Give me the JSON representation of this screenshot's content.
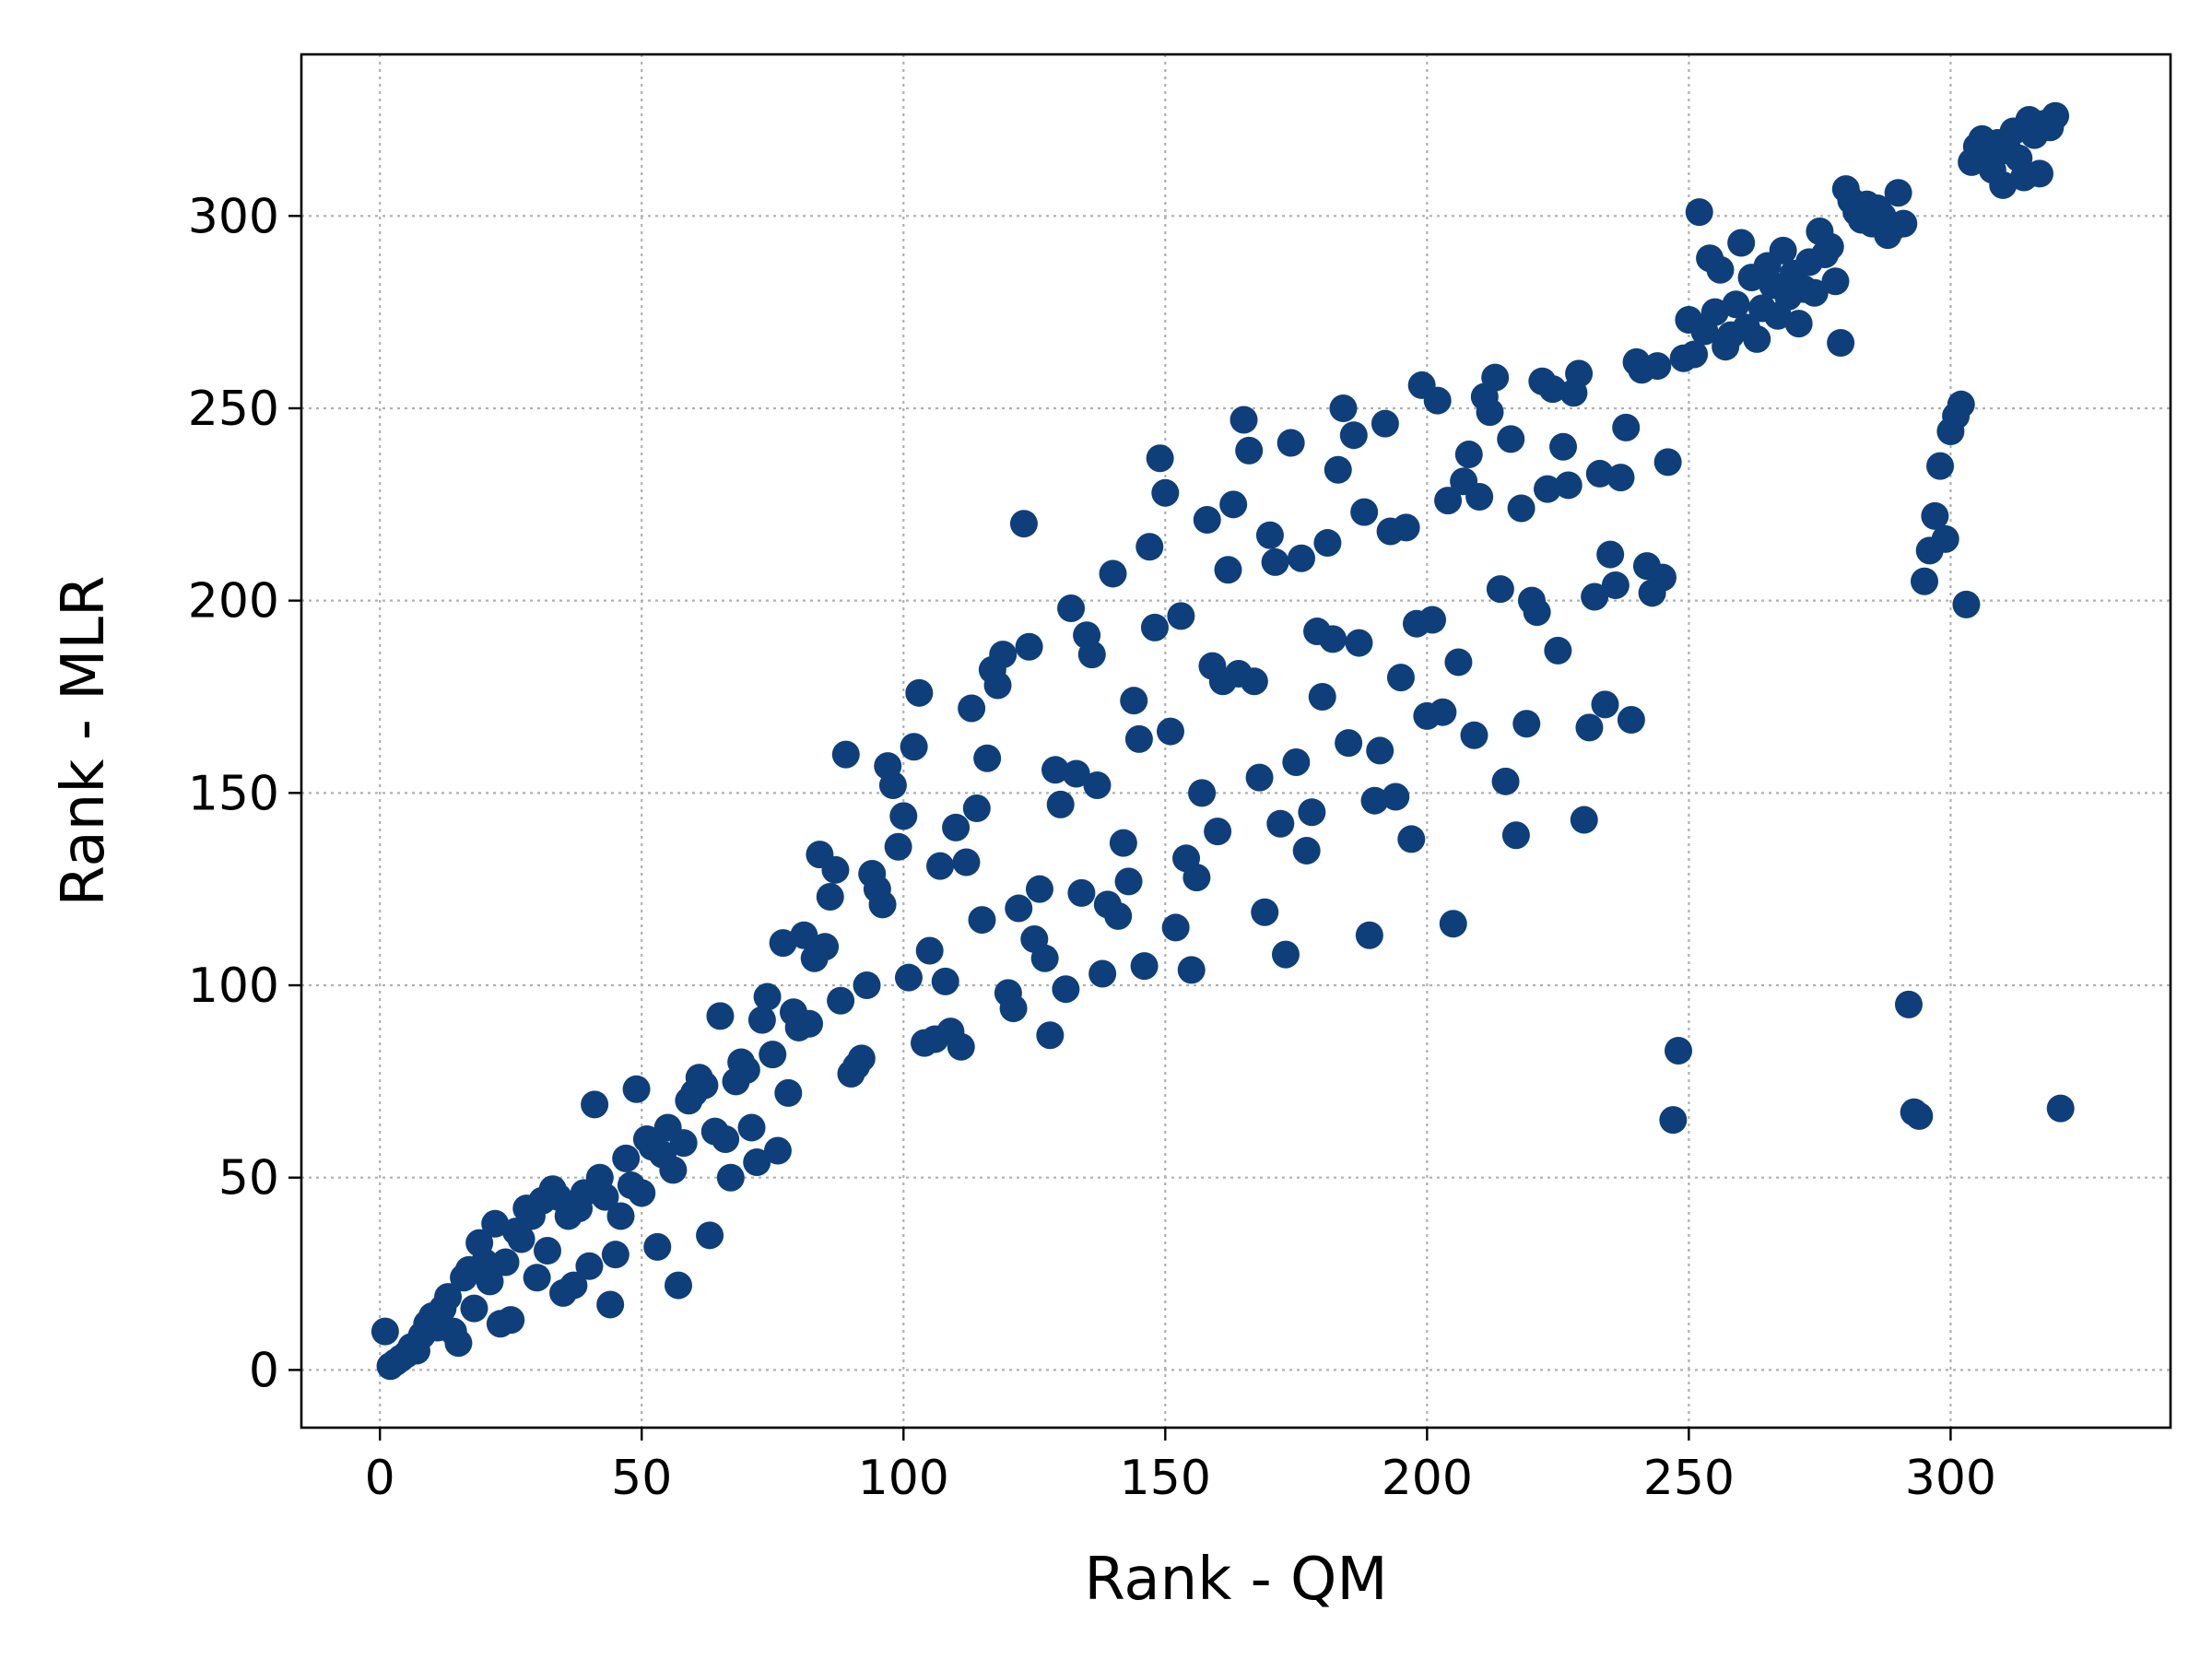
{
  "chart_data": {
    "type": "scatter",
    "title": "",
    "xlabel": "Rank - QM",
    "ylabel": "Rank - MLR",
    "xlim": [
      -15,
      342
    ],
    "ylim": [
      -15,
      342
    ],
    "xticks": [
      0,
      50,
      100,
      150,
      200,
      250,
      300
    ],
    "yticks": [
      0,
      50,
      100,
      150,
      200,
      250,
      300
    ],
    "grid": true,
    "marker_color": "#0f3f7a",
    "series": [
      {
        "points": [
          [
            1,
            10
          ],
          [
            2,
            1
          ],
          [
            3,
            2
          ],
          [
            4,
            3
          ],
          [
            5,
            4
          ],
          [
            6,
            6
          ],
          [
            7,
            5
          ],
          [
            8,
            9
          ],
          [
            9,
            12
          ],
          [
            10,
            14
          ],
          [
            11,
            11
          ],
          [
            12,
            16
          ],
          [
            13,
            19
          ],
          [
            14,
            10
          ],
          [
            15,
            7
          ],
          [
            16,
            24
          ],
          [
            17,
            26
          ],
          [
            18,
            16
          ],
          [
            19,
            33
          ],
          [
            20,
            28
          ],
          [
            21,
            23
          ],
          [
            22,
            38
          ],
          [
            23,
            12
          ],
          [
            24,
            28
          ],
          [
            25,
            13
          ],
          [
            26,
            36
          ],
          [
            27,
            34
          ],
          [
            28,
            42
          ],
          [
            29,
            40
          ],
          [
            30,
            24
          ],
          [
            31,
            44
          ],
          [
            32,
            31
          ],
          [
            33,
            47
          ],
          [
            34,
            45
          ],
          [
            35,
            20
          ],
          [
            36,
            40
          ],
          [
            37,
            22
          ],
          [
            38,
            42
          ],
          [
            39,
            46
          ],
          [
            40,
            27
          ],
          [
            41,
            69
          ],
          [
            42,
            50
          ],
          [
            43,
            45
          ],
          [
            44,
            17
          ],
          [
            45,
            30
          ],
          [
            46,
            40
          ],
          [
            47,
            55
          ],
          [
            48,
            48
          ],
          [
            49,
            73
          ],
          [
            50,
            46
          ],
          [
            51,
            60
          ],
          [
            52,
            58
          ],
          [
            53,
            32
          ],
          [
            54,
            56
          ],
          [
            55,
            63
          ],
          [
            56,
            52
          ],
          [
            57,
            22
          ],
          [
            58,
            59
          ],
          [
            59,
            70
          ],
          [
            60,
            72
          ],
          [
            61,
            76
          ],
          [
            62,
            74
          ],
          [
            63,
            35
          ],
          [
            64,
            62
          ],
          [
            65,
            92
          ],
          [
            66,
            60
          ],
          [
            67,
            50
          ],
          [
            68,
            75
          ],
          [
            69,
            80
          ],
          [
            70,
            78
          ],
          [
            71,
            63
          ],
          [
            72,
            54
          ],
          [
            73,
            91
          ],
          [
            74,
            97
          ],
          [
            75,
            82
          ],
          [
            76,
            57
          ],
          [
            77,
            111
          ],
          [
            78,
            72
          ],
          [
            79,
            93
          ],
          [
            80,
            89
          ],
          [
            81,
            113
          ],
          [
            82,
            90
          ],
          [
            83,
            107
          ],
          [
            84,
            134
          ],
          [
            85,
            110
          ],
          [
            86,
            123
          ],
          [
            87,
            130
          ],
          [
            88,
            96
          ],
          [
            89,
            160
          ],
          [
            90,
            77
          ],
          [
            91,
            79
          ],
          [
            92,
            81
          ],
          [
            93,
            100
          ],
          [
            94,
            129
          ],
          [
            95,
            125
          ],
          [
            96,
            121
          ],
          [
            97,
            157
          ],
          [
            98,
            152
          ],
          [
            99,
            136
          ],
          [
            100,
            144
          ],
          [
            101,
            102
          ],
          [
            102,
            162
          ],
          [
            103,
            176
          ],
          [
            104,
            85
          ],
          [
            105,
            109
          ],
          [
            106,
            86
          ],
          [
            107,
            131
          ],
          [
            108,
            101
          ],
          [
            109,
            88
          ],
          [
            110,
            141
          ],
          [
            111,
            84
          ],
          [
            112,
            132
          ],
          [
            113,
            172
          ],
          [
            114,
            146
          ],
          [
            115,
            117
          ],
          [
            116,
            159
          ],
          [
            117,
            182
          ],
          [
            118,
            178
          ],
          [
            119,
            186
          ],
          [
            120,
            98
          ],
          [
            121,
            94
          ],
          [
            122,
            120
          ],
          [
            123,
            220
          ],
          [
            124,
            188
          ],
          [
            125,
            112
          ],
          [
            126,
            125
          ],
          [
            127,
            107
          ],
          [
            128,
            87
          ],
          [
            129,
            156
          ],
          [
            130,
            147
          ],
          [
            131,
            99
          ],
          [
            132,
            198
          ],
          [
            133,
            155
          ],
          [
            134,
            124
          ],
          [
            135,
            191
          ],
          [
            136,
            186
          ],
          [
            137,
            152
          ],
          [
            138,
            103
          ],
          [
            139,
            121
          ],
          [
            140,
            207
          ],
          [
            141,
            118
          ],
          [
            142,
            137
          ],
          [
            143,
            127
          ],
          [
            144,
            174
          ],
          [
            145,
            164
          ],
          [
            146,
            105
          ],
          [
            147,
            214
          ],
          [
            148,
            193
          ],
          [
            149,
            237
          ],
          [
            150,
            228
          ],
          [
            151,
            166
          ],
          [
            152,
            115
          ],
          [
            153,
            196
          ],
          [
            154,
            133
          ],
          [
            155,
            104
          ],
          [
            156,
            128
          ],
          [
            157,
            150
          ],
          [
            158,
            221
          ],
          [
            159,
            183
          ],
          [
            160,
            140
          ],
          [
            161,
            179
          ],
          [
            162,
            208
          ],
          [
            163,
            225
          ],
          [
            164,
            181
          ],
          [
            165,
            247
          ],
          [
            166,
            239
          ],
          [
            167,
            179
          ],
          [
            168,
            154
          ],
          [
            169,
            119
          ],
          [
            170,
            217
          ],
          [
            171,
            210
          ],
          [
            172,
            142
          ],
          [
            173,
            108
          ],
          [
            174,
            241
          ],
          [
            175,
            158
          ],
          [
            176,
            211
          ],
          [
            177,
            135
          ],
          [
            178,
            145
          ],
          [
            179,
            192
          ],
          [
            180,
            175
          ],
          [
            181,
            215
          ],
          [
            182,
            190
          ],
          [
            183,
            234
          ],
          [
            184,
            250
          ],
          [
            185,
            163
          ],
          [
            186,
            243
          ],
          [
            187,
            189
          ],
          [
            188,
            223
          ],
          [
            189,
            113
          ],
          [
            190,
            148
          ],
          [
            191,
            161
          ],
          [
            192,
            246
          ],
          [
            193,
            218
          ],
          [
            194,
            149
          ],
          [
            195,
            180
          ],
          [
            196,
            219
          ],
          [
            197,
            138
          ],
          [
            198,
            194
          ],
          [
            199,
            256
          ],
          [
            200,
            170
          ],
          [
            201,
            195
          ],
          [
            202,
            252
          ],
          [
            203,
            171
          ],
          [
            204,
            226
          ],
          [
            205,
            116
          ],
          [
            206,
            184
          ],
          [
            207,
            231
          ],
          [
            208,
            238
          ],
          [
            209,
            165
          ],
          [
            210,
            227
          ],
          [
            211,
            253
          ],
          [
            212,
            249
          ],
          [
            213,
            258
          ],
          [
            214,
            203
          ],
          [
            215,
            153
          ],
          [
            216,
            242
          ],
          [
            217,
            139
          ],
          [
            218,
            224
          ],
          [
            219,
            168
          ],
          [
            220,
            200
          ],
          [
            221,
            197
          ],
          [
            222,
            257
          ],
          [
            223,
            229
          ],
          [
            224,
            255
          ],
          [
            225,
            187
          ],
          [
            226,
            240
          ],
          [
            227,
            230
          ],
          [
            228,
            254
          ],
          [
            229,
            259
          ],
          [
            230,
            143
          ],
          [
            231,
            167
          ],
          [
            232,
            201
          ],
          [
            233,
            233
          ],
          [
            234,
            173
          ],
          [
            235,
            212
          ],
          [
            236,
            204
          ],
          [
            237,
            232
          ],
          [
            238,
            245
          ],
          [
            239,
            169
          ],
          [
            240,
            262
          ],
          [
            241,
            260
          ],
          [
            242,
            209
          ],
          [
            243,
            202
          ],
          [
            244,
            261
          ],
          [
            245,
            206
          ],
          [
            246,
            236
          ],
          [
            247,
            65
          ],
          [
            248,
            83
          ],
          [
            249,
            263
          ],
          [
            250,
            273
          ],
          [
            251,
            264
          ],
          [
            252,
            301
          ],
          [
            253,
            270
          ],
          [
            254,
            289
          ],
          [
            255,
            275
          ],
          [
            256,
            286
          ],
          [
            257,
            266
          ],
          [
            258,
            269
          ],
          [
            259,
            277
          ],
          [
            260,
            293
          ],
          [
            261,
            271
          ],
          [
            262,
            284
          ],
          [
            263,
            268
          ],
          [
            264,
            276
          ],
          [
            265,
            287
          ],
          [
            266,
            282
          ],
          [
            267,
            274
          ],
          [
            268,
            291
          ],
          [
            269,
            279
          ],
          [
            270,
            285
          ],
          [
            271,
            272
          ],
          [
            272,
            281
          ],
          [
            273,
            288
          ],
          [
            274,
            280
          ],
          [
            275,
            296
          ],
          [
            276,
            290
          ],
          [
            277,
            292
          ],
          [
            278,
            283
          ],
          [
            279,
            267
          ],
          [
            280,
            307
          ],
          [
            281,
            304
          ],
          [
            282,
            301
          ],
          [
            283,
            299
          ],
          [
            284,
            303
          ],
          [
            285,
            298
          ],
          [
            286,
            302
          ],
          [
            287,
            300
          ],
          [
            288,
            295
          ],
          [
            289,
            297
          ],
          [
            290,
            306
          ],
          [
            291,
            298
          ],
          [
            292,
            95
          ],
          [
            293,
            67
          ],
          [
            294,
            66
          ],
          [
            295,
            205
          ],
          [
            296,
            213
          ],
          [
            297,
            222
          ],
          [
            298,
            235
          ],
          [
            299,
            216
          ],
          [
            300,
            244
          ],
          [
            301,
            248
          ],
          [
            302,
            251
          ],
          [
            303,
            199
          ],
          [
            304,
            314
          ],
          [
            305,
            318
          ],
          [
            306,
            320
          ],
          [
            307,
            316
          ],
          [
            308,
            312
          ],
          [
            309,
            319
          ],
          [
            310,
            308
          ],
          [
            311,
            317
          ],
          [
            312,
            322
          ],
          [
            313,
            315
          ],
          [
            314,
            310
          ],
          [
            315,
            325
          ],
          [
            316,
            321
          ],
          [
            317,
            311
          ],
          [
            318,
            324
          ],
          [
            319,
            323
          ],
          [
            320,
            326
          ],
          [
            321,
            68
          ]
        ]
      }
    ]
  }
}
